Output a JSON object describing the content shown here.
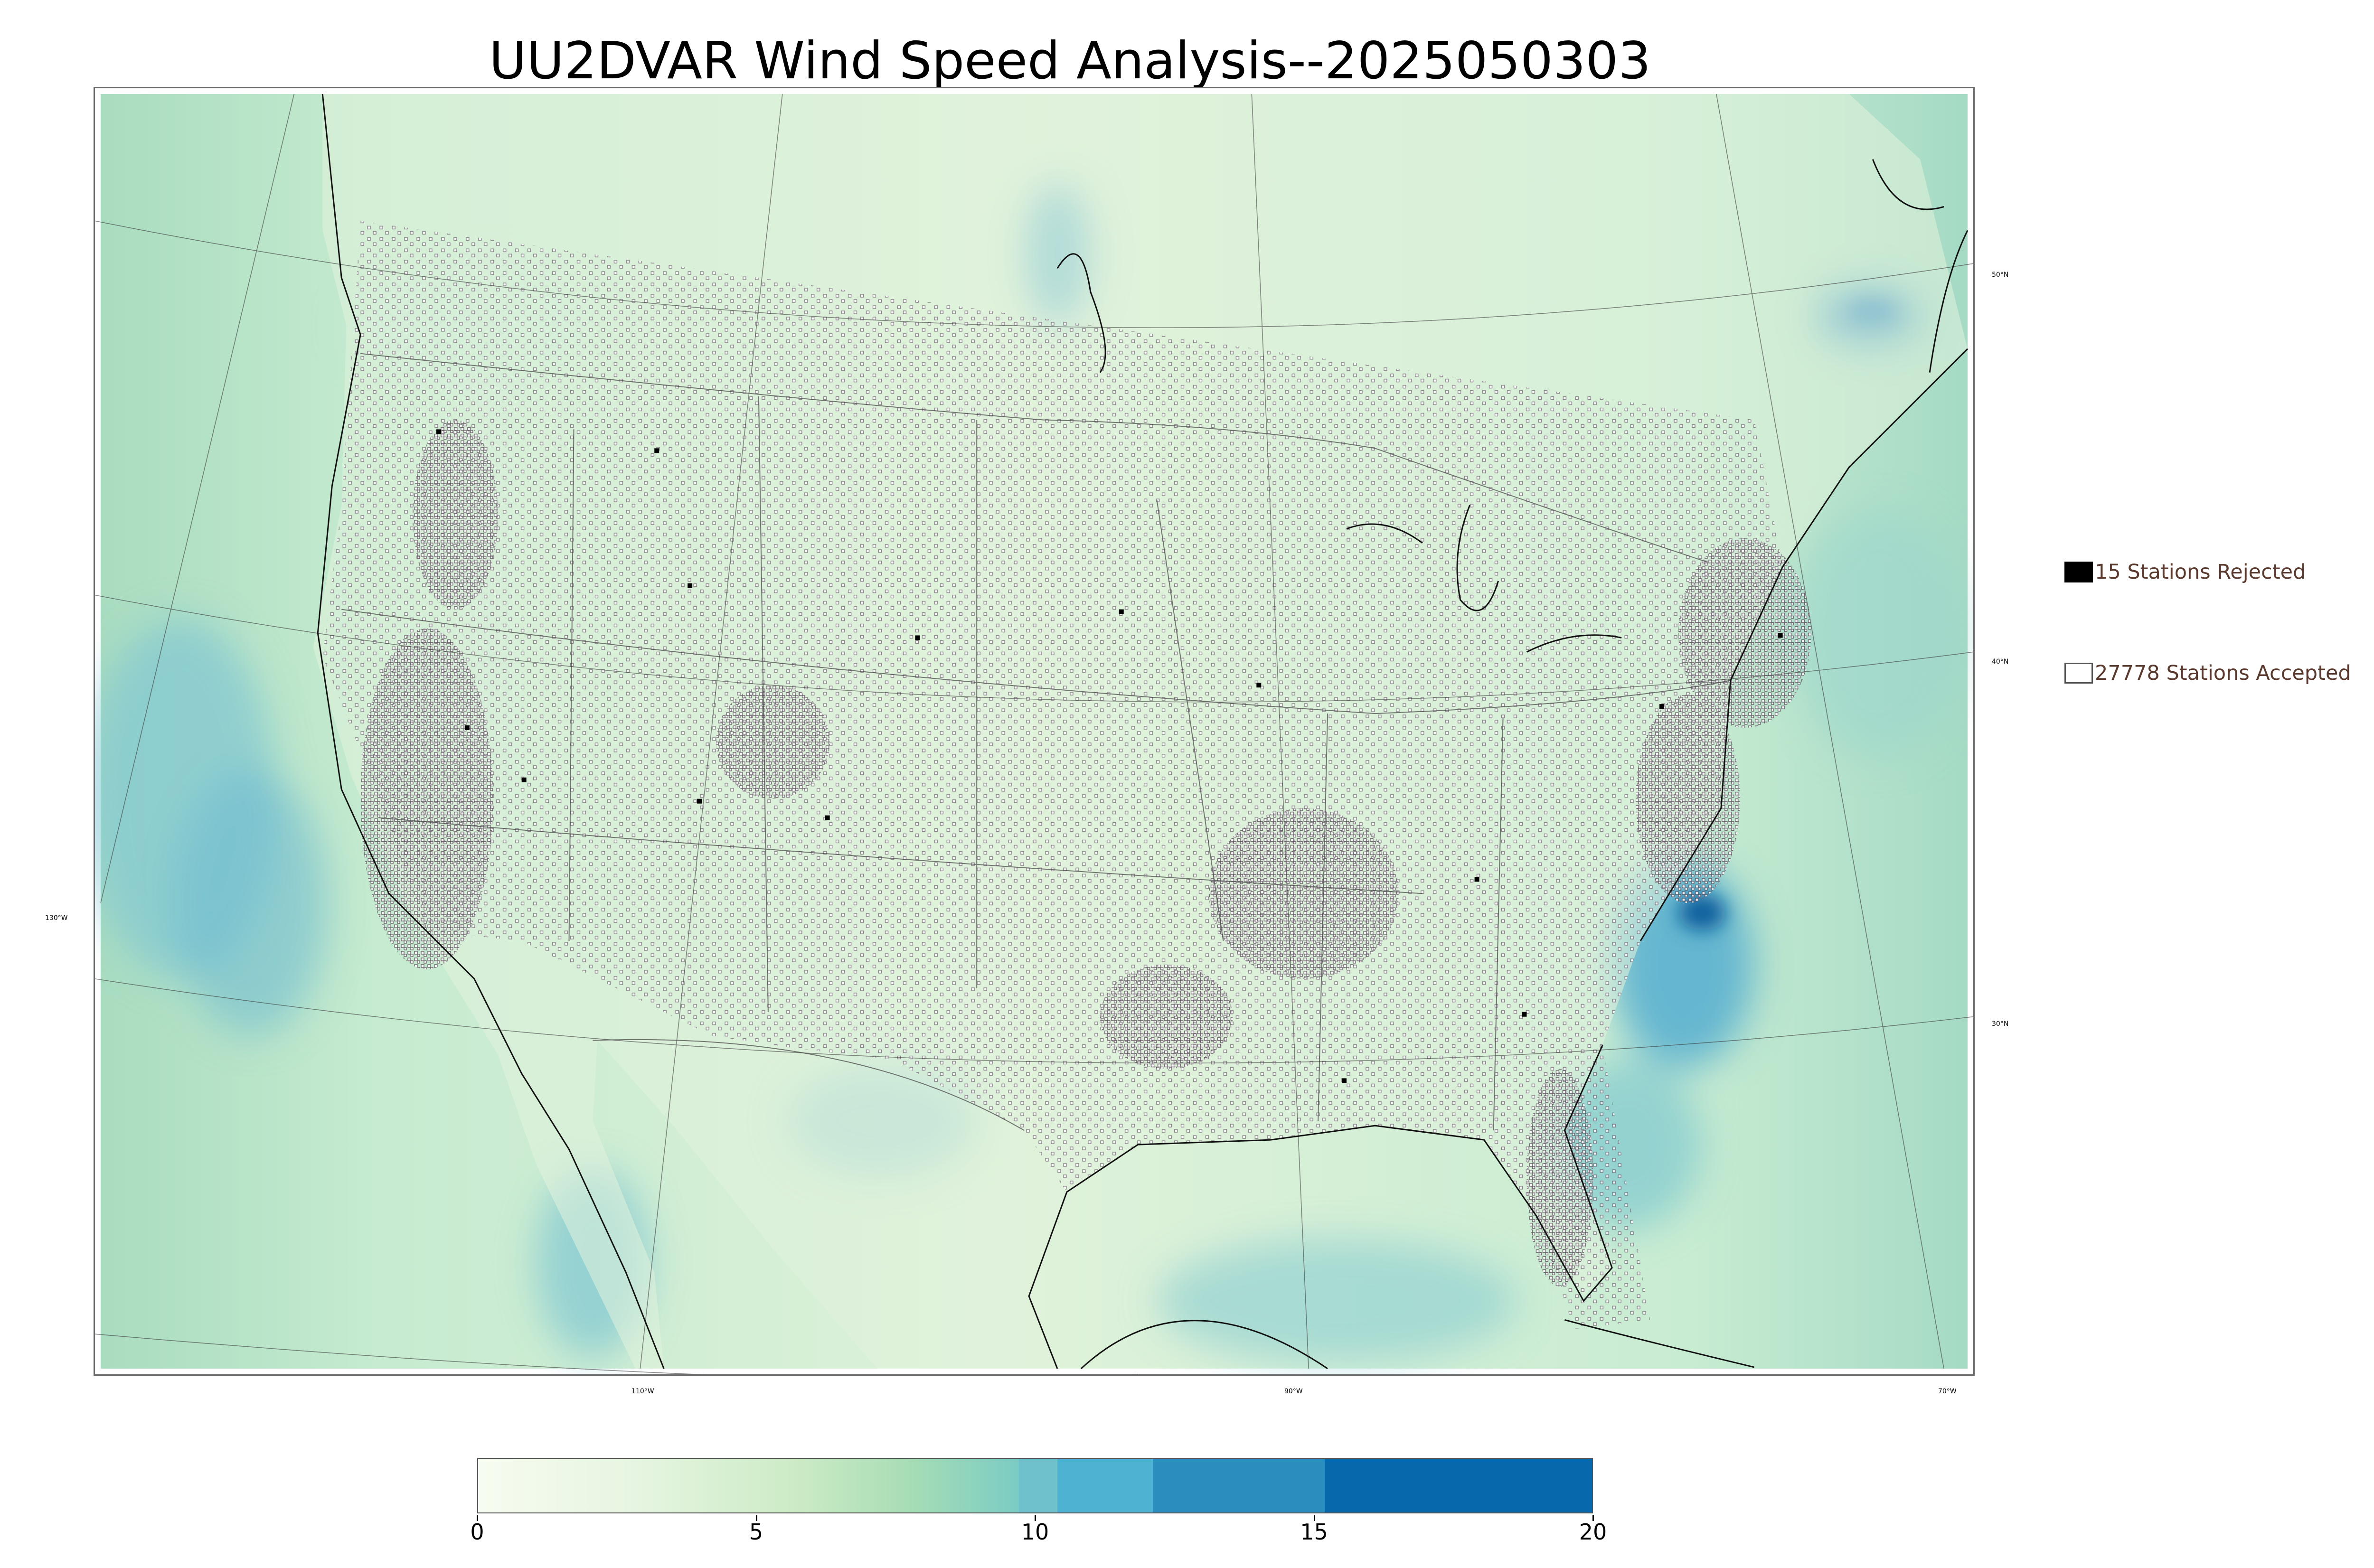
{
  "title": "UU2DVAR Wind Speed Analysis--2025050303",
  "map": {
    "lon_labels": [
      "130°W",
      "110°W",
      "90°W",
      "70°W"
    ],
    "lat_labels": [
      "50°N",
      "40°N",
      "30°N"
    ]
  },
  "legend": {
    "rejected": {
      "label": "15 Stations Rejected",
      "color": "#000000"
    },
    "accepted": {
      "label": "27778 Stations Accepted",
      "color": "#ffffff"
    }
  },
  "colorbar": {
    "ticks": [
      "0",
      "5",
      "10",
      "15",
      "20"
    ],
    "colors": [
      "#f7fcf0",
      "#e6f5e1",
      "#ccebc5",
      "#a8ddb5",
      "#7bccc4",
      "#6fc2cc",
      "#4eb3d3",
      "#2b8cbe",
      "#0868ac"
    ]
  },
  "chart_data": {
    "type": "heatmap",
    "title": "UU2DVAR Wind Speed Analysis--2025050303",
    "variable": "wind speed",
    "colorbar_range": [
      0,
      20
    ],
    "colorbar_ticks": [
      0,
      5,
      10,
      15,
      20
    ],
    "stations_rejected": 15,
    "stations_accepted": 27778,
    "legend": [
      "15 Stations Rejected",
      "27778 Stations Accepted"
    ]
  }
}
